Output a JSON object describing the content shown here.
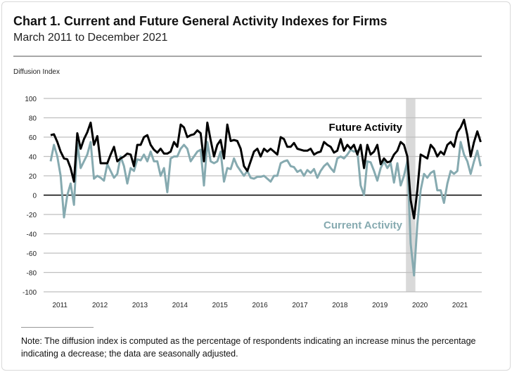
{
  "chart_data": {
    "type": "line",
    "title": "Chart 1. Current and Future General Activity Indexes for Firms",
    "subtitle": "March 2011 to December 2021",
    "ylabel": "Diffusion Index",
    "xlabel": "",
    "ylim": [
      -100,
      100
    ],
    "yticks": [
      100,
      80,
      60,
      40,
      20,
      0,
      -20,
      -40,
      -60,
      -80,
      -100
    ],
    "xtick_labels": [
      "2011",
      "2012",
      "2013",
      "2014",
      "2015",
      "2016",
      "2017",
      "2018",
      "2019",
      "2020",
      "2021"
    ],
    "x_start": "2011-03",
    "x_end": "2021-12",
    "frequency": "monthly",
    "grid": true,
    "shaded_period": {
      "start": "2020-02",
      "end": "2020-04",
      "color": "#d9d9d9"
    },
    "series": [
      {
        "name": "Future Activity",
        "color": "#000000",
        "values": [
          62,
          63,
          55,
          45,
          38,
          37,
          28,
          14,
          64,
          48,
          58,
          65,
          75,
          52,
          61,
          33,
          33,
          33,
          42,
          50,
          35,
          38,
          40,
          43,
          42,
          30,
          52,
          52,
          60,
          62,
          52,
          47,
          44,
          48,
          43,
          43,
          45,
          55,
          50,
          73,
          70,
          60,
          62,
          63,
          67,
          64,
          35,
          75,
          57,
          40,
          52,
          57,
          38,
          73,
          56,
          57,
          56,
          48,
          30,
          25,
          35,
          45,
          48,
          40,
          48,
          45,
          48,
          45,
          42,
          60,
          58,
          50,
          50,
          54,
          48,
          47,
          46,
          46,
          48,
          42,
          44,
          45,
          55,
          52,
          50,
          44,
          46,
          58,
          46,
          52,
          48,
          52,
          42,
          52,
          28,
          52,
          42,
          45,
          52,
          32,
          38,
          34,
          35,
          42,
          46,
          55,
          52,
          40,
          -5,
          -24,
          5,
          42,
          40,
          38,
          52,
          48,
          40,
          45,
          42,
          52,
          55,
          50,
          65,
          70,
          78,
          62,
          40,
          55,
          66,
          55
        ]
      },
      {
        "name": "Current Activity",
        "color": "#86aab0",
        "values": [
          35,
          52,
          40,
          20,
          -23,
          0,
          12,
          -10,
          54,
          28,
          35,
          42,
          55,
          17,
          20,
          18,
          15,
          32,
          25,
          18,
          22,
          40,
          30,
          12,
          28,
          25,
          37,
          36,
          42,
          35,
          45,
          35,
          35,
          20,
          28,
          3,
          38,
          40,
          40,
          48,
          52,
          48,
          35,
          40,
          45,
          47,
          10,
          55,
          35,
          33,
          35,
          45,
          14,
          28,
          27,
          38,
          30,
          25,
          20,
          25,
          18,
          17,
          19,
          19,
          20,
          17,
          14,
          20,
          20,
          33,
          35,
          36,
          30,
          29,
          24,
          26,
          20,
          26,
          23,
          27,
          18,
          25,
          30,
          33,
          28,
          24,
          38,
          40,
          38,
          42,
          47,
          45,
          46,
          10,
          0,
          35,
          34,
          25,
          15,
          28,
          35,
          28,
          33,
          13,
          33,
          10,
          20,
          35,
          -50,
          -83,
          -30,
          5,
          22,
          18,
          23,
          25,
          5,
          5,
          -8,
          12,
          25,
          22,
          25,
          55,
          42,
          35,
          22,
          35,
          46,
          30
        ]
      }
    ]
  },
  "note": "Note:  The diffusion index is computed as the percentage of respondents indicating an increase minus the percentage indicating a decrease; the data are seasonally adjusted."
}
